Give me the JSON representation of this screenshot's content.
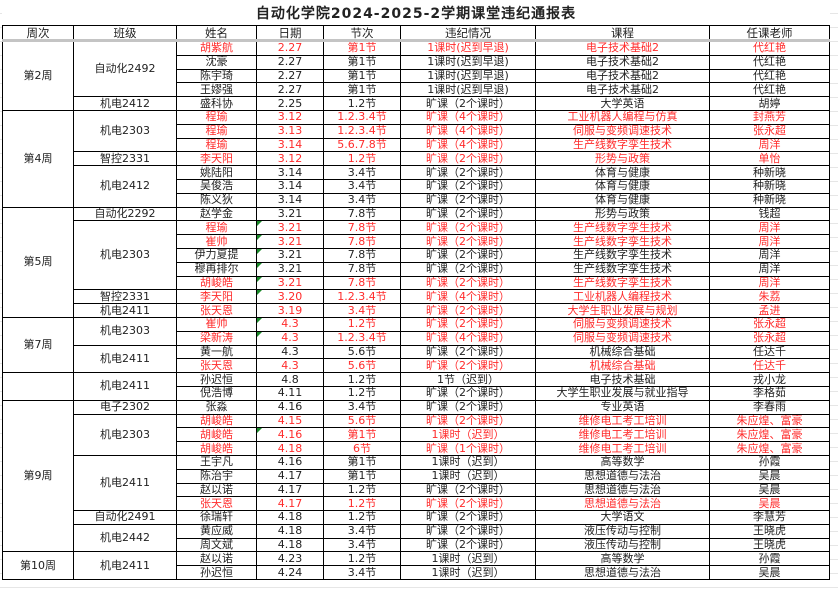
{
  "title": "自动化学院2024-2025-2学期课堂违纪通报表",
  "headers": [
    "周次",
    "班级",
    "姓名",
    "日期",
    "节次",
    "违纪情况",
    "课程",
    "任课老师"
  ],
  "colors": {
    "highlight": "#ff2b2b",
    "text": "#222222",
    "marker": "#1a8a2a"
  },
  "weeks": [
    {
      "label": "第2周",
      "classes": [
        {
          "name": "自动化2492",
          "rows": [
            {
              "name": "胡紫航",
              "date": "2.27",
              "period": "第1节",
              "violation": "1课时(迟到早退)",
              "course": "电子技术基础2",
              "teacher": "代红艳",
              "red": true
            },
            {
              "name": "沈豪",
              "date": "2.27",
              "period": "第1节",
              "violation": "1课时(迟到早退)",
              "course": "电子技术基础2",
              "teacher": "代红艳"
            },
            {
              "name": "陈宇琦",
              "date": "2.27",
              "period": "第1节",
              "violation": "1课时(迟到早退)",
              "course": "电子技术基础2",
              "teacher": "代红艳"
            },
            {
              "name": "王嫪强",
              "date": "2.27",
              "period": "第1节",
              "violation": "1课时(迟到早退)",
              "course": "电子技术基础2",
              "teacher": "代红艳"
            }
          ]
        },
        {
          "name": "机电2412",
          "rows": [
            {
              "name": "盛科协",
              "date": "2.25",
              "period": "1.2节",
              "violation": "旷课（2个课时）",
              "course": "大学英语",
              "teacher": "胡婷"
            }
          ]
        }
      ]
    },
    {
      "label": "第4周",
      "classes": [
        {
          "name": "机电2303",
          "rows": [
            {
              "name": "程瑜",
              "date": "3.12",
              "period": "1.2.3.4节",
              "violation": "旷课（4个课时）",
              "course": "工业机器人编程与仿真",
              "teacher": "封燕芳",
              "red": true
            },
            {
              "name": "程瑜",
              "date": "3.13",
              "period": "1.2.3.4节",
              "violation": "旷课（4个课时）",
              "course": "伺服与变频调速技术",
              "teacher": "张永超",
              "red": true
            },
            {
              "name": "程瑜",
              "date": "3.14",
              "period": "5.6.7.8节",
              "violation": "旷课（4个课时）",
              "course": "生产线数字孪生技术",
              "teacher": "周洋",
              "red": true
            }
          ]
        },
        {
          "name": "智控2331",
          "rows": [
            {
              "name": "李天阳",
              "date": "3.12",
              "period": "1.2节",
              "violation": "旷课（2个课时）",
              "course": "形势与政策",
              "teacher": "单怡",
              "red": true
            }
          ]
        },
        {
          "name": "机电2412",
          "rows": [
            {
              "name": "姚陆阳",
              "date": "3.14",
              "period": "3.4节",
              "violation": "旷课（2个课时）",
              "course": "体育与健康",
              "teacher": "种新晓"
            },
            {
              "name": "吴俊浩",
              "date": "3.14",
              "period": "3.4节",
              "violation": "旷课（2个课时）",
              "course": "体育与健康",
              "teacher": "种新晓"
            },
            {
              "name": "陈义狄",
              "date": "3.14",
              "period": "3.4节",
              "violation": "旷课（2个课时）",
              "course": "体育与健康",
              "teacher": "种新晓"
            }
          ]
        }
      ]
    },
    {
      "label": "第5周",
      "classes": [
        {
          "name": "自动化2292",
          "rows": [
            {
              "name": "赵学金",
              "date": "3.21",
              "period": "7.8节",
              "violation": "旷课（2个课时）",
              "course": "形势与政策",
              "teacher": "钱超"
            }
          ]
        },
        {
          "name": "机电2303",
          "rows": [
            {
              "name": "程瑜",
              "date": "3.21",
              "period": "7.8节",
              "violation": "旷课（2个课时）",
              "course": "生产线数字孪生技术",
              "teacher": "周洋",
              "red": true,
              "marker": true
            },
            {
              "name": "崔帅",
              "date": "3.21",
              "period": "7.8节",
              "violation": "旷课（2个课时）",
              "course": "生产线数字孪生技术",
              "teacher": "周洋",
              "red": true,
              "marker": true
            },
            {
              "name": "伊力夏提",
              "date": "3.21",
              "period": "7.8节",
              "violation": "旷课（2个课时）",
              "course": "生产线数字孪生技术",
              "teacher": "周洋",
              "marker": true
            },
            {
              "name": "穆再排尔",
              "date": "3.21",
              "period": "7.8节",
              "violation": "旷课（2个课时）",
              "course": "生产线数字孪生技术",
              "teacher": "周洋",
              "marker": true
            },
            {
              "name": "胡峻皓",
              "date": "3.21",
              "period": "7.8节",
              "violation": "旷课（2个课时）",
              "course": "生产线数字孪生技术",
              "teacher": "周洋",
              "red": true,
              "marker": true
            }
          ]
        },
        {
          "name": "智控2331",
          "rows": [
            {
              "name": "李天阳",
              "date": "3.20",
              "period": "1.2.3.4节",
              "violation": "旷课（4个课时）",
              "course": "工业机器人编程技术",
              "teacher": "朱荔",
              "red": true,
              "marker": true
            }
          ]
        },
        {
          "name": "机电2411",
          "rows": [
            {
              "name": "张天恩",
              "date": "3.19",
              "period": "3.4节",
              "violation": "旷课（2个课时）",
              "course": "大学生职业发展与规划",
              "teacher": "孟进",
              "red": true
            }
          ]
        }
      ]
    },
    {
      "label": "第7周",
      "classes": [
        {
          "name": "机电2303",
          "rows": [
            {
              "name": "崔帅",
              "date": "4.3",
              "period": "1.2节",
              "violation": "旷课（2个课时）",
              "course": "伺服与变频调速技术",
              "teacher": "张永超",
              "red": true,
              "marker": true
            },
            {
              "name": "梁新涛",
              "date": "4.3",
              "period": "1.2.3.4节",
              "violation": "旷课（4个课时）",
              "course": "伺服与变频调速技术",
              "teacher": "张永超",
              "red": true,
              "marker": true
            }
          ]
        },
        {
          "name": "机电2411",
          "rows": [
            {
              "name": "黄一航",
              "date": "4.3",
              "period": "5.6节",
              "violation": "旷课（2个课时）",
              "course": "机械综合基础",
              "teacher": "任达千"
            },
            {
              "name": "张天恩",
              "date": "4.3",
              "period": "5.6节",
              "violation": "旷课（2个课时）",
              "course": "机械综合基础",
              "teacher": "任达千",
              "red": true
            }
          ]
        }
      ]
    },
    {
      "label": "",
      "classes": [
        {
          "name": "机电2411",
          "rows": [
            {
              "name": "孙迟恒",
              "date": "4.8",
              "period": "1.2节",
              "violation": "1节（迟到）",
              "course": "电子技术基础",
              "teacher": "戎小龙"
            },
            {
              "name": "倪浩博",
              "date": "4.11",
              "period": "1.2节",
              "violation": "旷课（2个课时）",
              "course": "大学生职业发展与就业指导",
              "teacher": "李格茹"
            }
          ]
        }
      ]
    },
    {
      "label": "第9周",
      "classes": [
        {
          "name": "电子2302",
          "rows": [
            {
              "name": "张淼",
              "date": "4.16",
              "period": "3.4节",
              "violation": "旷课（2个课时）",
              "course": "专业英语",
              "teacher": "李春雨"
            }
          ]
        },
        {
          "name": "机电2303",
          "rows": [
            {
              "name": "胡峻皓",
              "date": "4.15",
              "period": "5.6节",
              "violation": "旷课（2个课时）",
              "course": "维修电工考工培训",
              "teacher": "朱应煌、富豪",
              "red": true
            },
            {
              "name": "胡峻皓",
              "date": "4.16",
              "period": "第1节",
              "violation": "1课时（迟到）",
              "course": "维修电工考工培训",
              "teacher": "朱应煌、富豪",
              "red": true,
              "marker": true
            },
            {
              "name": "胡峻皓",
              "date": "4.18",
              "period": "6节",
              "violation": "旷课（1个课时）",
              "course": "维修电工考工培训",
              "teacher": "朱应煌、富豪",
              "red": true
            }
          ]
        },
        {
          "name": "机电2411",
          "rows": [
            {
              "name": "王宇凡",
              "date": "4.16",
              "period": "第1节",
              "violation": "1课时（迟到）",
              "course": "高等数学",
              "teacher": "孙霞"
            },
            {
              "name": "陈治宇",
              "date": "4.17",
              "period": "第1节",
              "violation": "1课时（迟到）",
              "course": "思想道德与法治",
              "teacher": "吴晨"
            },
            {
              "name": "赵以诺",
              "date": "4.17",
              "period": "1.2节",
              "violation": "旷课（2个课时）",
              "course": "思想道德与法治",
              "teacher": "吴晨"
            },
            {
              "name": "张天恩",
              "date": "4.17",
              "period": "1.2节",
              "violation": "旷课（2个课时）",
              "course": "思想道德与法治",
              "teacher": "吴晨",
              "red": true
            }
          ]
        },
        {
          "name": "自动化2491",
          "rows": [
            {
              "name": "徐瑞轩",
              "date": "4.18",
              "period": "1.2节",
              "violation": "旷课（2个课时）",
              "course": "大学语文",
              "teacher": "李慧芳"
            }
          ]
        },
        {
          "name": "机电2442",
          "rows": [
            {
              "name": "黄应威",
              "date": "4.18",
              "period": "3.4节",
              "violation": "旷课（2个课时）",
              "course": "液压传动与控制",
              "teacher": "王晓虎"
            },
            {
              "name": "周文斌",
              "date": "4.18",
              "period": "3.4节",
              "violation": "旷课（2个课时）",
              "course": "液压传动与控制",
              "teacher": "王晓虎"
            }
          ]
        }
      ]
    },
    {
      "label": "第10周",
      "classes": [
        {
          "name": "机电2411",
          "rows": [
            {
              "name": "赵以诺",
              "date": "4.23",
              "period": "1.2节",
              "violation": "1课时（迟到）",
              "course": "高等数学",
              "teacher": "孙霞"
            },
            {
              "name": "孙迟恒",
              "date": "4.24",
              "period": "3.4节",
              "violation": "1课时（迟到）",
              "course": "思想道德与法治",
              "teacher": "吴晨"
            }
          ]
        }
      ]
    }
  ]
}
